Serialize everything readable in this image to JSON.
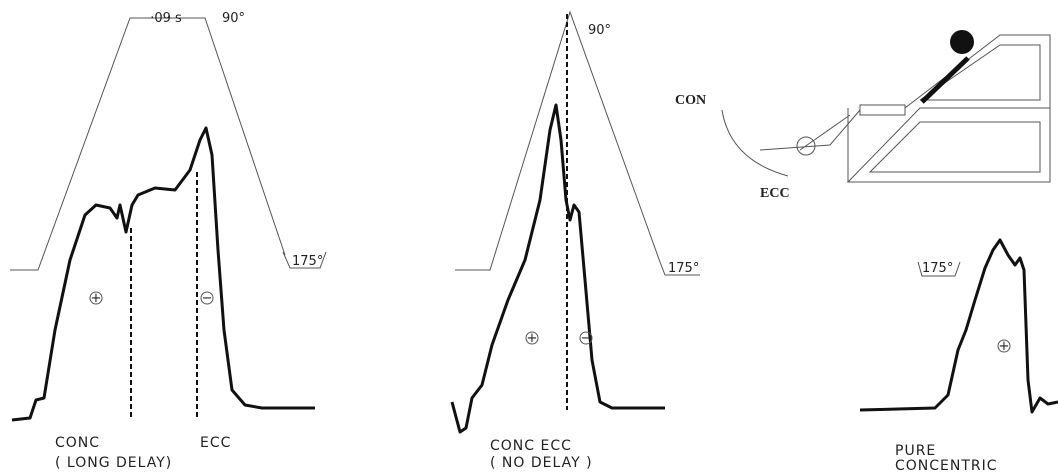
{
  "panels": [
    {
      "duration": "·09 s",
      "top_angle": "90°",
      "bottom_angle": "175°",
      "signs": [
        "+",
        "−"
      ],
      "caption": [
        "CONC",
        "ECC",
        "( LONG   DELAY)"
      ]
    },
    {
      "top_angle": "90°",
      "bottom_angle": "175°",
      "signs": [
        "+",
        "−"
      ],
      "caption": [
        "CONC  ECC",
        "( NO   DELAY )"
      ]
    },
    {
      "bottom_angle": "175°",
      "signs": [
        "+"
      ],
      "caption": [
        "PURE",
        "CONCENTRIC"
      ]
    }
  ],
  "apparatus": {
    "labels": [
      "CON",
      "ECC"
    ]
  }
}
